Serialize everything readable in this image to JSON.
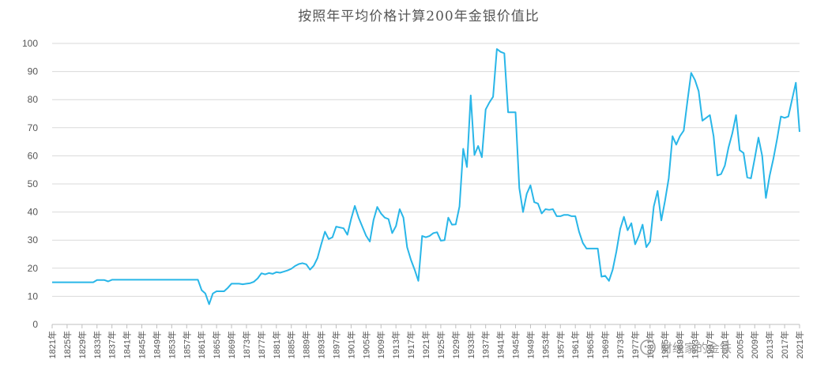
{
  "chart_data": {
    "type": "line",
    "title": "按照年平均价格计算200年金银价值比",
    "xlabel": "",
    "ylabel": "",
    "ylim": [
      0,
      100
    ],
    "yticks": [
      0,
      10,
      20,
      30,
      40,
      50,
      60,
      70,
      80,
      90,
      100
    ],
    "xlim": [
      1821,
      2021
    ],
    "xticks": [
      "1821年",
      "1825年",
      "1829年",
      "1833年",
      "1837年",
      "1841年",
      "1845年",
      "1849年",
      "1853年",
      "1857年",
      "1861年",
      "1865年",
      "1869年",
      "1873年",
      "1877年",
      "1881年",
      "1885年",
      "1889年",
      "1893年",
      "1897年",
      "1901年",
      "1905年",
      "1909年",
      "1913年",
      "1917年",
      "1921年",
      "1925年",
      "1929年",
      "1933年",
      "1937年",
      "1941年",
      "1945年",
      "1949年",
      "1953年",
      "1957年",
      "1961年",
      "1965年",
      "1969年",
      "1973年",
      "1977年",
      "1981年",
      "1985年",
      "1989年",
      "1993年",
      "1997年",
      "2001年",
      "2005年",
      "2009年",
      "2013年",
      "2017年",
      "2021年"
    ],
    "grid": true,
    "legend": "none",
    "line_color": "#29b6e8",
    "series": [
      {
        "points": [
          [
            1821,
            15.0
          ],
          [
            1832,
            15.0
          ],
          [
            1833,
            15.8
          ],
          [
            1835,
            15.8
          ],
          [
            1836,
            15.3
          ],
          [
            1837,
            15.9
          ],
          [
            1860,
            15.9
          ],
          [
            1861,
            12.2
          ],
          [
            1862,
            11.0
          ],
          [
            1863,
            7.2
          ],
          [
            1864,
            11.0
          ],
          [
            1865,
            11.8
          ],
          [
            1867,
            11.8
          ],
          [
            1868,
            13.0
          ],
          [
            1869,
            14.5
          ],
          [
            1871,
            14.5
          ],
          [
            1872,
            14.3
          ],
          [
            1873,
            14.5
          ],
          [
            1874,
            14.7
          ],
          [
            1875,
            15.2
          ],
          [
            1876,
            16.4
          ],
          [
            1877,
            18.2
          ],
          [
            1878,
            17.8
          ],
          [
            1879,
            18.3
          ],
          [
            1880,
            18.0
          ],
          [
            1881,
            18.6
          ],
          [
            1882,
            18.4
          ],
          [
            1883,
            18.8
          ],
          [
            1884,
            19.2
          ],
          [
            1885,
            19.8
          ],
          [
            1886,
            20.8
          ],
          [
            1887,
            21.5
          ],
          [
            1888,
            21.8
          ],
          [
            1889,
            21.4
          ],
          [
            1890,
            19.5
          ],
          [
            1891,
            20.9
          ],
          [
            1892,
            23.6
          ],
          [
            1893,
            28.5
          ],
          [
            1894,
            33.0
          ],
          [
            1895,
            30.4
          ],
          [
            1896,
            31.0
          ],
          [
            1897,
            34.8
          ],
          [
            1898,
            34.5
          ],
          [
            1899,
            34.2
          ],
          [
            1900,
            31.9
          ],
          [
            1901,
            37.5
          ],
          [
            1902,
            42.2
          ],
          [
            1903,
            38.0
          ],
          [
            1904,
            34.8
          ],
          [
            1905,
            31.6
          ],
          [
            1906,
            29.5
          ],
          [
            1907,
            37.2
          ],
          [
            1908,
            41.8
          ],
          [
            1909,
            39.5
          ],
          [
            1910,
            38.0
          ],
          [
            1911,
            37.5
          ],
          [
            1912,
            32.5
          ],
          [
            1913,
            35.0
          ],
          [
            1914,
            41.0
          ],
          [
            1915,
            38.0
          ],
          [
            1916,
            27.5
          ],
          [
            1917,
            23.0
          ],
          [
            1918,
            19.5
          ],
          [
            1919,
            15.5
          ],
          [
            1920,
            31.5
          ],
          [
            1921,
            31.0
          ],
          [
            1922,
            31.5
          ],
          [
            1923,
            32.5
          ],
          [
            1924,
            32.8
          ],
          [
            1925,
            29.8
          ],
          [
            1926,
            30.0
          ],
          [
            1927,
            38.0
          ],
          [
            1928,
            35.5
          ],
          [
            1929,
            35.6
          ],
          [
            1930,
            42.0
          ],
          [
            1931,
            62.5
          ],
          [
            1932,
            56.0
          ],
          [
            1933,
            81.5
          ],
          [
            1934,
            60.3
          ],
          [
            1935,
            63.5
          ],
          [
            1936,
            59.5
          ],
          [
            1937,
            76.5
          ],
          [
            1938,
            79.0
          ],
          [
            1939,
            81.0
          ],
          [
            1940,
            98.0
          ],
          [
            1941,
            97.0
          ],
          [
            1942,
            96.5
          ],
          [
            1943,
            75.5
          ],
          [
            1944,
            75.5
          ],
          [
            1945,
            75.5
          ],
          [
            1946,
            48.5
          ],
          [
            1947,
            40.0
          ],
          [
            1948,
            46.5
          ],
          [
            1949,
            49.5
          ],
          [
            1950,
            43.5
          ],
          [
            1951,
            43.0
          ],
          [
            1952,
            39.5
          ],
          [
            1953,
            41.0
          ],
          [
            1954,
            40.8
          ],
          [
            1955,
            41.0
          ],
          [
            1956,
            38.5
          ],
          [
            1957,
            38.5
          ],
          [
            1958,
            39.0
          ],
          [
            1959,
            39.0
          ],
          [
            1960,
            38.5
          ],
          [
            1961,
            38.5
          ],
          [
            1962,
            33.0
          ],
          [
            1963,
            29.0
          ],
          [
            1964,
            27.0
          ],
          [
            1965,
            27.0
          ],
          [
            1966,
            27.0
          ],
          [
            1967,
            27.0
          ],
          [
            1968,
            17.0
          ],
          [
            1969,
            17.3
          ],
          [
            1970,
            15.5
          ],
          [
            1971,
            19.5
          ],
          [
            1972,
            26.0
          ],
          [
            1973,
            34.0
          ],
          [
            1974,
            38.3
          ],
          [
            1975,
            33.5
          ],
          [
            1976,
            36.0
          ],
          [
            1977,
            28.5
          ],
          [
            1978,
            31.5
          ],
          [
            1979,
            35.5
          ],
          [
            1980,
            27.5
          ],
          [
            1981,
            29.5
          ],
          [
            1982,
            42.0
          ],
          [
            1983,
            47.5
          ],
          [
            1984,
            37.0
          ],
          [
            1985,
            44.0
          ],
          [
            1986,
            52.0
          ],
          [
            1987,
            67.0
          ],
          [
            1988,
            64.0
          ],
          [
            1989,
            67.0
          ],
          [
            1990,
            69.0
          ],
          [
            1991,
            79.5
          ],
          [
            1992,
            89.5
          ],
          [
            1993,
            87.0
          ],
          [
            1994,
            83.0
          ],
          [
            1995,
            72.5
          ],
          [
            1996,
            73.5
          ],
          [
            1997,
            74.5
          ],
          [
            1998,
            67.0
          ],
          [
            1999,
            53.0
          ],
          [
            2000,
            53.5
          ],
          [
            2001,
            56.5
          ],
          [
            2002,
            63.0
          ],
          [
            2003,
            68.0
          ],
          [
            2004,
            74.5
          ],
          [
            2005,
            62.0
          ],
          [
            2006,
            61.0
          ],
          [
            2007,
            52.3
          ],
          [
            2008,
            52.0
          ],
          [
            2009,
            59.0
          ],
          [
            2010,
            66.5
          ],
          [
            2011,
            60.0
          ],
          [
            2012,
            45.0
          ],
          [
            2013,
            53.0
          ],
          [
            2014,
            59.0
          ],
          [
            2015,
            66.0
          ],
          [
            2016,
            74.0
          ],
          [
            2017,
            73.5
          ],
          [
            2018,
            74.0
          ],
          [
            2019,
            80.0
          ],
          [
            2020,
            86.0
          ],
          [
            2021,
            68.5
          ]
        ]
      }
    ]
  },
  "watermark": {
    "icon": "wechat-icon",
    "text": "财经家的金铁"
  }
}
